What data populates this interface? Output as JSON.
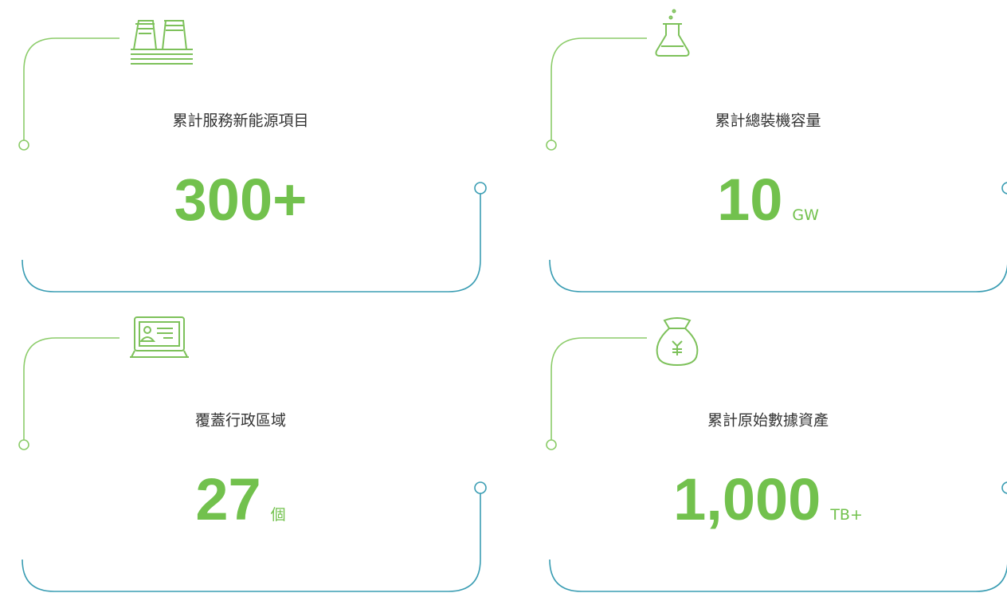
{
  "cards": [
    {
      "label": "累計服務新能源項目",
      "value": "300+"
    },
    {
      "label": "累計總裝機容量",
      "value": "10",
      "unit": "GW"
    },
    {
      "label": "覆蓋行政區域",
      "value": "27",
      "unit": "個"
    },
    {
      "label": "累計原始數據資產",
      "value": "1,000",
      "unit": "TB+"
    }
  ]
}
